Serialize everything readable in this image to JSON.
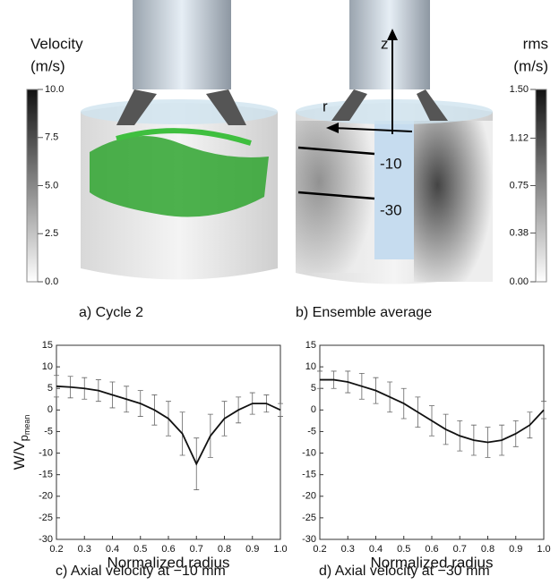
{
  "panels": [
    {
      "caption": "a) Cycle 2",
      "colorbar": {
        "title": "Velocity",
        "unit": "(m/s)",
        "lim": [
          0,
          10
        ],
        "ticks": [
          {
            "value": 10,
            "label": "10.0"
          },
          7.5,
          {
            "value": 5,
            "label": "5.0"
          },
          2.5,
          {
            "value": 0,
            "label": "0.0"
          }
        ]
      }
    },
    {
      "caption": "b) Ensemble average",
      "colorbar": {
        "title": "rms",
        "unit": "(m/s)",
        "lim": [
          0,
          1.5
        ],
        "ticks": [
          {
            "value": 1.5,
            "label": "1.50"
          },
          1.12,
          0.75,
          0.38,
          {
            "value": 0,
            "label": "0.00"
          }
        ]
      },
      "annotations": [
        "z",
        "r",
        "-10",
        "-30"
      ]
    }
  ],
  "chart_data": [
    {
      "type": "line",
      "caption": "c) Axial velocity at −10 mm",
      "xlabel": "Normalized radius",
      "ylabel": "W/V",
      "ylabel_subscript": "p",
      "ylabel_subsubscript": "mean",
      "x": [
        0.2,
        0.25,
        0.3,
        0.35,
        0.4,
        0.45,
        0.5,
        0.55,
        0.6,
        0.65,
        0.7,
        0.75,
        0.8,
        0.85,
        0.9,
        0.95,
        1.0
      ],
      "series": [
        {
          "color": "#111111",
          "values": [
            5.5,
            5.3,
            5,
            4.5,
            3.5,
            2.5,
            1.5,
            0,
            -2,
            -5.5,
            -12.5,
            -6,
            -2,
            0,
            1.5,
            1.5,
            0
          ],
          "errors": [
            2.5,
            2.5,
            2.5,
            2.5,
            3,
            3,
            3,
            3.5,
            4,
            5,
            6,
            5,
            4,
            3,
            2.5,
            2,
            1.5
          ]
        }
      ],
      "xlim": [
        0.2,
        1.0
      ],
      "xticks": [
        0.2,
        0.3,
        0.4,
        0.5,
        0.6,
        0.7,
        0.8,
        0.9,
        {
          "value": 1,
          "label": "1.0"
        }
      ],
      "ylim": [
        -30,
        15
      ],
      "yticks": [
        -30,
        -25,
        -20,
        -15,
        -10,
        -5,
        0,
        5,
        10,
        15
      ]
    },
    {
      "type": "line",
      "caption": "d) Axial velocity at −30 mm",
      "xlabel": "Normalized radius",
      "x": [
        0.2,
        0.25,
        0.3,
        0.35,
        0.4,
        0.45,
        0.5,
        0.55,
        0.6,
        0.65,
        0.7,
        0.75,
        0.8,
        0.85,
        0.9,
        0.95,
        1.0
      ],
      "series": [
        {
          "color": "#111111",
          "values": [
            7,
            7,
            6.5,
            5.5,
            4.5,
            3,
            1.5,
            -0.5,
            -2.5,
            -4.5,
            -6,
            -7,
            -7.5,
            -7,
            -5.5,
            -3.5,
            0
          ],
          "errors": [
            2,
            2,
            2.5,
            3,
            3,
            3.5,
            3.5,
            3.5,
            3.5,
            3.5,
            3.5,
            3.5,
            3.5,
            3.5,
            3,
            3,
            2
          ]
        }
      ],
      "xlim": [
        0.2,
        1.0
      ],
      "xticks": [
        0.2,
        0.3,
        0.4,
        0.5,
        0.6,
        0.7,
        0.8,
        0.9,
        {
          "value": 1,
          "label": "1.0"
        }
      ],
      "ylim": [
        -30,
        15
      ],
      "yticks": [
        -30,
        -25,
        -20,
        -15,
        -10,
        -5,
        0,
        5,
        10,
        15
      ]
    }
  ]
}
